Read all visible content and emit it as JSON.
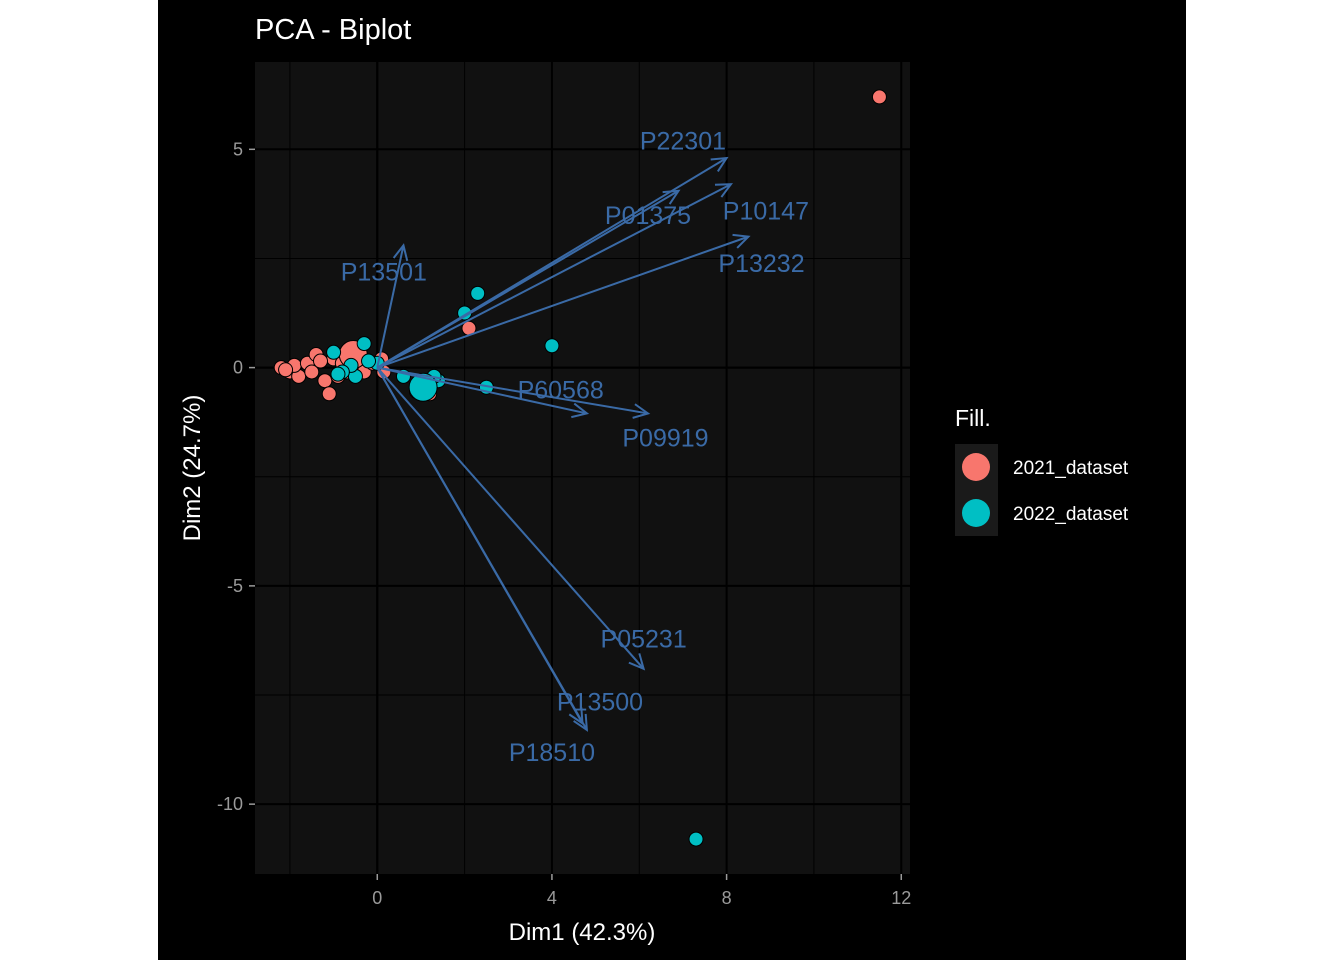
{
  "chart_data": {
    "type": "scatter",
    "title": "PCA - Biplot",
    "xlabel": "Dim1 (42.3%)",
    "ylabel": "Dim2 (24.7%)",
    "xlim": [
      -2.8,
      12.2
    ],
    "ylim": [
      -11.6,
      7.0
    ],
    "x_ticks": [
      0,
      4,
      8,
      12
    ],
    "y_ticks": [
      5,
      0,
      -5,
      -10
    ],
    "grid": true,
    "legend": {
      "title": "Fill.",
      "placement": "right",
      "entries": [
        {
          "name": "2021_dataset",
          "color": "#F8766D"
        },
        {
          "name": "2022_dataset",
          "color": "#00BFC4"
        }
      ]
    },
    "colors": {
      "background": "#000000",
      "panel": "#111111",
      "grid": "#000000",
      "arrow": "#3a6aa6",
      "tick_text": "#9a9a9a",
      "text": "#ffffff"
    },
    "series": [
      {
        "name": "2021_dataset",
        "color": "#F8766D",
        "points": [
          [
            11.5,
            6.2
          ],
          [
            2.1,
            0.9
          ],
          [
            -2.2,
            0.0
          ],
          [
            -2.0,
            -0.1
          ],
          [
            -1.8,
            -0.2
          ],
          [
            -1.9,
            0.05
          ],
          [
            -1.6,
            0.1
          ],
          [
            -1.4,
            0.3
          ],
          [
            -1.2,
            -0.3
          ],
          [
            -1.1,
            -0.6
          ],
          [
            -1.0,
            0.2
          ],
          [
            -0.8,
            0.1
          ],
          [
            -0.7,
            -0.1
          ],
          [
            -0.5,
            0.3
          ],
          [
            -0.3,
            -0.1
          ],
          [
            -0.1,
            0.1
          ],
          [
            0.1,
            0.2
          ],
          [
            0.15,
            -0.1
          ],
          [
            -1.5,
            -0.1
          ],
          [
            -1.3,
            0.15
          ],
          [
            -0.9,
            -0.2
          ],
          [
            -2.1,
            -0.05
          ],
          [
            1.2,
            -0.6
          ],
          [
            1.1,
            -0.5
          ],
          [
            1.0,
            -0.3
          ],
          [
            0.9,
            -0.55
          ]
        ],
        "centroid": [
          -0.55,
          0.3
        ]
      },
      {
        "name": "2022_dataset",
        "color": "#00BFC4",
        "points": [
          [
            7.3,
            -10.8
          ],
          [
            4.0,
            0.5
          ],
          [
            2.3,
            1.7
          ],
          [
            2.0,
            1.25
          ],
          [
            2.5,
            -0.45
          ],
          [
            1.4,
            -0.3
          ],
          [
            1.3,
            -0.2
          ],
          [
            1.2,
            -0.5
          ],
          [
            0.6,
            -0.2
          ],
          [
            0.0,
            0.1
          ],
          [
            -0.3,
            0.55
          ],
          [
            -0.5,
            -0.2
          ],
          [
            -0.6,
            0.05
          ],
          [
            -0.8,
            -0.1
          ],
          [
            -1.0,
            0.35
          ],
          [
            -0.9,
            -0.15
          ],
          [
            -0.2,
            0.15
          ]
        ],
        "centroid": [
          1.05,
          -0.45
        ]
      }
    ],
    "variables": [
      {
        "name": "P22301",
        "x": 8.0,
        "y": 4.8,
        "label_x": 7.0,
        "label_y": 5.2
      },
      {
        "name": "P01375",
        "x": 6.9,
        "y": 4.05,
        "label_x": 6.2,
        "label_y": 3.5
      },
      {
        "name": "P10147",
        "x": 8.1,
        "y": 4.2,
        "label_x": 8.9,
        "label_y": 3.6
      },
      {
        "name": "P13232",
        "x": 8.5,
        "y": 3.0,
        "label_x": 8.8,
        "label_y": 2.4
      },
      {
        "name": "P13501",
        "x": 0.6,
        "y": 2.8,
        "label_x": 0.15,
        "label_y": 2.2
      },
      {
        "name": "P60568",
        "x": 4.8,
        "y": -1.05,
        "label_x": 4.2,
        "label_y": -0.5
      },
      {
        "name": "P09919",
        "x": 6.2,
        "y": -1.05,
        "label_x": 6.6,
        "label_y": -1.6
      },
      {
        "name": "P05231",
        "x": 6.1,
        "y": -6.9,
        "label_x": 6.1,
        "label_y": -6.2
      },
      {
        "name": "P13500",
        "x": 4.8,
        "y": -8.3,
        "label_x": 5.1,
        "label_y": -7.65
      },
      {
        "name": "P18510",
        "x": 4.7,
        "y": -8.15,
        "label_x": 4.0,
        "label_y": -8.8
      }
    ]
  }
}
